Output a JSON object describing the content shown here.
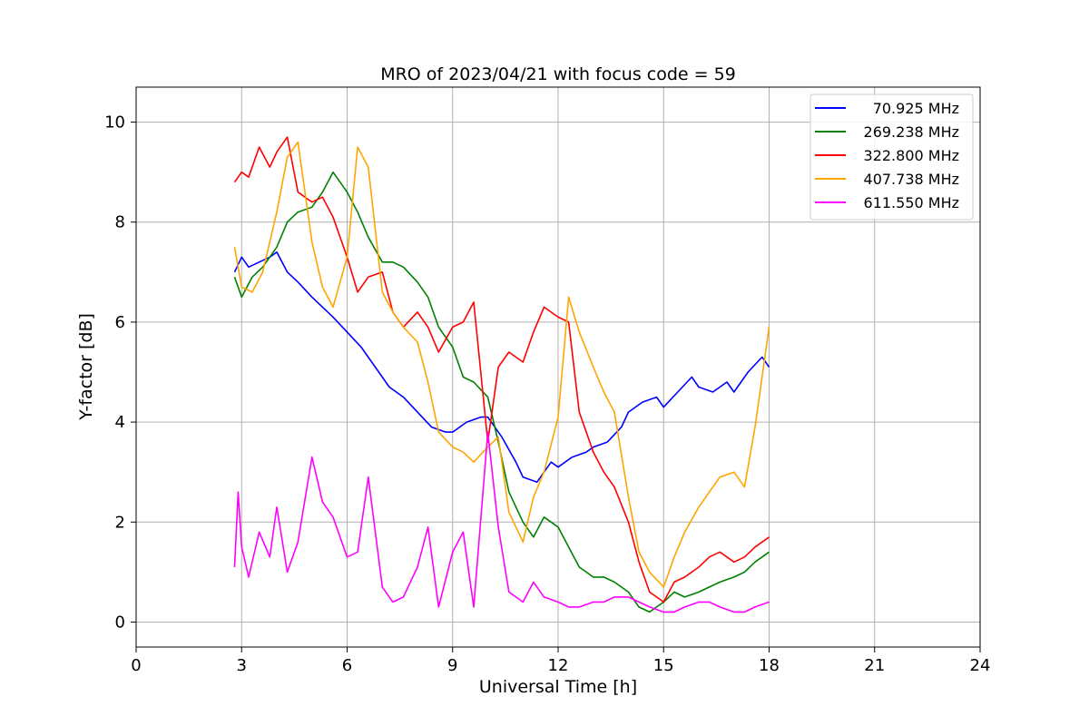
{
  "chart_data": {
    "type": "line",
    "title": "MRO of 2023/04/21 with focus code = 59",
    "xlabel": "Universal Time [h]",
    "ylabel": "Y-factor [dB]",
    "xlim": [
      0,
      24
    ],
    "ylim": [
      -0.5,
      10.7
    ],
    "xticks": [
      0,
      3,
      6,
      9,
      12,
      15,
      18,
      21,
      24
    ],
    "yticks": [
      0,
      2,
      4,
      6,
      8,
      10
    ],
    "grid": true,
    "legend_position": "top-right",
    "series": [
      {
        "name": "70.925 MHz",
        "color": "#0000ff",
        "x": [
          2.8,
          3.0,
          3.2,
          3.5,
          3.8,
          4.0,
          4.3,
          4.6,
          5.0,
          5.3,
          5.6,
          6.0,
          6.4,
          6.8,
          7.2,
          7.6,
          8.0,
          8.4,
          8.8,
          9.0,
          9.4,
          9.8,
          10.0,
          10.4,
          10.8,
          11.0,
          11.4,
          11.8,
          12.0,
          12.4,
          12.8,
          13.0,
          13.4,
          13.8,
          14.0,
          14.4,
          14.8,
          15.0,
          15.4,
          15.8,
          16.0,
          16.4,
          16.8,
          17.0,
          17.4,
          17.8,
          18.0
        ],
        "y": [
          7.0,
          7.3,
          7.1,
          7.2,
          7.3,
          7.4,
          7.0,
          6.8,
          6.5,
          6.3,
          6.1,
          5.8,
          5.5,
          5.1,
          4.7,
          4.5,
          4.2,
          3.9,
          3.8,
          3.8,
          4.0,
          4.1,
          4.1,
          3.7,
          3.2,
          2.9,
          2.8,
          3.2,
          3.1,
          3.3,
          3.4,
          3.5,
          3.6,
          3.9,
          4.2,
          4.4,
          4.5,
          4.3,
          4.6,
          4.9,
          4.7,
          4.6,
          4.8,
          4.6,
          5.0,
          5.3,
          5.1
        ]
      },
      {
        "name": "269.238 MHz",
        "color": "#008000",
        "x": [
          2.8,
          3.0,
          3.3,
          3.6,
          4.0,
          4.3,
          4.6,
          5.0,
          5.3,
          5.6,
          6.0,
          6.3,
          6.6,
          7.0,
          7.3,
          7.6,
          8.0,
          8.3,
          8.6,
          9.0,
          9.3,
          9.6,
          10.0,
          10.3,
          10.6,
          11.0,
          11.3,
          11.6,
          12.0,
          12.3,
          12.6,
          13.0,
          13.3,
          13.6,
          14.0,
          14.3,
          14.6,
          15.0,
          15.3,
          15.6,
          16.0,
          16.3,
          16.6,
          17.0,
          17.3,
          17.6,
          18.0
        ],
        "y": [
          6.9,
          6.5,
          6.9,
          7.1,
          7.5,
          8.0,
          8.2,
          8.3,
          8.6,
          9.0,
          8.6,
          8.2,
          7.7,
          7.2,
          7.2,
          7.1,
          6.8,
          6.5,
          5.9,
          5.5,
          4.9,
          4.8,
          4.5,
          3.6,
          2.6,
          2.0,
          1.7,
          2.1,
          1.9,
          1.5,
          1.1,
          0.9,
          0.9,
          0.8,
          0.6,
          0.3,
          0.2,
          0.4,
          0.6,
          0.5,
          0.6,
          0.7,
          0.8,
          0.9,
          1.0,
          1.2,
          1.4
        ]
      },
      {
        "name": "322.800 MHz",
        "color": "#ff0000",
        "x": [
          2.8,
          3.0,
          3.2,
          3.5,
          3.8,
          4.0,
          4.3,
          4.6,
          5.0,
          5.3,
          5.6,
          6.0,
          6.3,
          6.6,
          7.0,
          7.3,
          7.6,
          8.0,
          8.3,
          8.6,
          9.0,
          9.3,
          9.6,
          10.0,
          10.3,
          10.6,
          11.0,
          11.3,
          11.6,
          12.0,
          12.3,
          12.6,
          13.0,
          13.3,
          13.6,
          14.0,
          14.3,
          14.6,
          15.0,
          15.3,
          15.6,
          16.0,
          16.3,
          16.6,
          17.0,
          17.3,
          17.6,
          18.0
        ],
        "y": [
          8.8,
          9.0,
          8.9,
          9.5,
          9.1,
          9.4,
          9.7,
          8.6,
          8.4,
          8.5,
          8.1,
          7.3,
          6.6,
          6.9,
          7.0,
          6.2,
          5.9,
          6.2,
          5.9,
          5.4,
          5.9,
          6.0,
          6.4,
          3.6,
          5.1,
          5.4,
          5.2,
          5.8,
          6.3,
          6.1,
          6.0,
          4.2,
          3.4,
          3.0,
          2.7,
          2.0,
          1.2,
          0.6,
          0.4,
          0.8,
          0.9,
          1.1,
          1.3,
          1.4,
          1.2,
          1.3,
          1.5,
          1.7
        ]
      },
      {
        "name": "407.738 MHz",
        "color": "#ffa500",
        "x": [
          2.8,
          3.0,
          3.3,
          3.6,
          4.0,
          4.3,
          4.6,
          5.0,
          5.3,
          5.6,
          6.0,
          6.3,
          6.6,
          7.0,
          7.3,
          7.6,
          8.0,
          8.3,
          8.6,
          9.0,
          9.3,
          9.6,
          10.0,
          10.3,
          10.6,
          11.0,
          11.3,
          11.6,
          12.0,
          12.3,
          12.6,
          13.0,
          13.3,
          13.6,
          14.0,
          14.3,
          14.6,
          15.0,
          15.3,
          15.6,
          16.0,
          16.3,
          16.6,
          17.0,
          17.3,
          17.6,
          18.0
        ],
        "y": [
          7.5,
          6.7,
          6.6,
          7.0,
          8.2,
          9.3,
          9.6,
          7.6,
          6.7,
          6.3,
          7.3,
          9.5,
          9.1,
          6.6,
          6.2,
          5.9,
          5.6,
          4.8,
          3.8,
          3.5,
          3.4,
          3.2,
          3.5,
          3.7,
          2.2,
          1.6,
          2.5,
          3.0,
          4.1,
          6.5,
          5.8,
          5.1,
          4.6,
          4.2,
          2.5,
          1.4,
          1.0,
          0.7,
          1.3,
          1.8,
          2.3,
          2.6,
          2.9,
          3.0,
          2.7,
          3.9,
          5.9
        ]
      },
      {
        "name": "611.550 MHz",
        "color": "#ff00ff",
        "x": [
          2.8,
          2.9,
          3.0,
          3.2,
          3.5,
          3.8,
          4.0,
          4.3,
          4.6,
          5.0,
          5.3,
          5.6,
          6.0,
          6.3,
          6.6,
          7.0,
          7.3,
          7.6,
          8.0,
          8.3,
          8.6,
          9.0,
          9.3,
          9.6,
          10.0,
          10.3,
          10.6,
          11.0,
          11.3,
          11.6,
          12.0,
          12.3,
          12.6,
          13.0,
          13.3,
          13.6,
          14.0,
          14.3,
          14.6,
          15.0,
          15.3,
          15.6,
          16.0,
          16.3,
          16.6,
          17.0,
          17.3,
          17.6,
          18.0
        ],
        "y": [
          1.1,
          2.6,
          1.5,
          0.9,
          1.8,
          1.3,
          2.3,
          1.0,
          1.6,
          3.3,
          2.4,
          2.1,
          1.3,
          1.4,
          2.9,
          0.7,
          0.4,
          0.5,
          1.1,
          1.9,
          0.3,
          1.4,
          1.8,
          0.3,
          3.8,
          1.9,
          0.6,
          0.4,
          0.8,
          0.5,
          0.4,
          0.3,
          0.3,
          0.4,
          0.4,
          0.5,
          0.5,
          0.4,
          0.3,
          0.2,
          0.2,
          0.3,
          0.4,
          0.4,
          0.3,
          0.2,
          0.2,
          0.3,
          0.4
        ]
      }
    ]
  }
}
